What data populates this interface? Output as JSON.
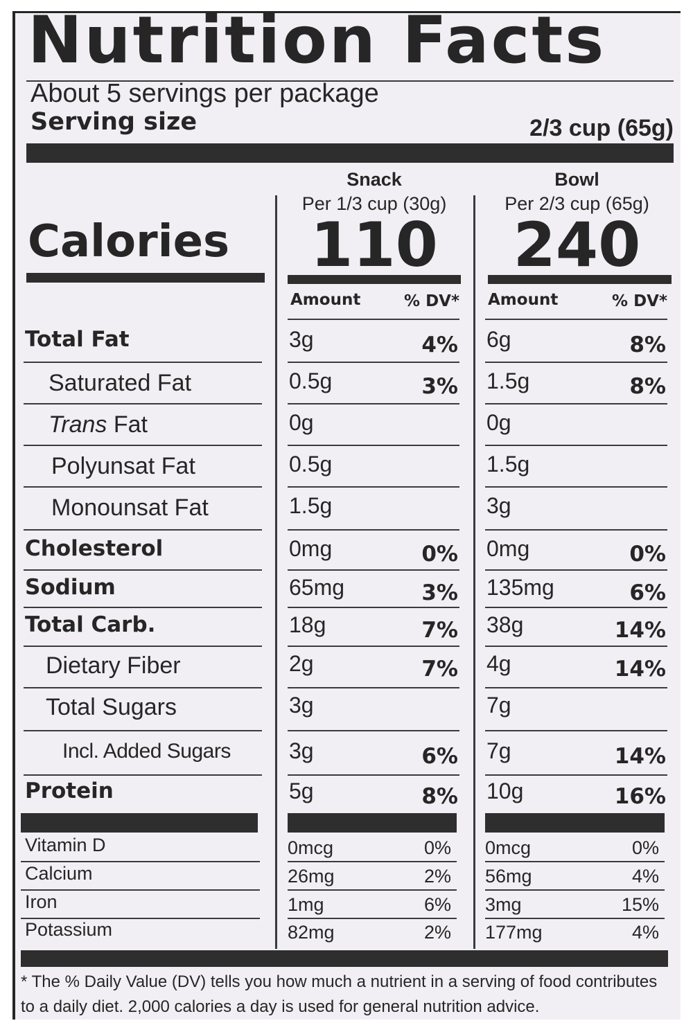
{
  "title": "Nutrition Facts",
  "servings": "About 5 servings per package",
  "serving_size_label": "Serving size",
  "serving_size": "2/3 cup (65g)",
  "calories_label": "Calories",
  "columns": [
    {
      "name": "Snack",
      "per": "Per 1/3 cup (30g)",
      "calories": 110,
      "amount_header": "Amount",
      "dv_header": "% DV*"
    },
    {
      "name": "Bowl",
      "per": "Per 2/3 cup (65g)",
      "calories": 240,
      "amount_header": "Amount",
      "dv_header": "% DV*"
    }
  ],
  "nutrients": [
    {
      "label": "Total Fat",
      "values": [
        [
          "3g",
          "4%"
        ],
        [
          "6g",
          "8%"
        ]
      ]
    },
    {
      "label": "Saturated Fat",
      "values": [
        [
          "0.5g",
          "3%"
        ],
        [
          "1.5g",
          "8%"
        ]
      ]
    },
    {
      "label": "Trans Fat",
      "values": [
        [
          "0g"
        ],
        [
          "0g"
        ]
      ]
    },
    {
      "label": "Polyunsat Fat",
      "values": [
        [
          "0.5g"
        ],
        [
          "1.5g"
        ]
      ]
    },
    {
      "label": "Monounsat Fat",
      "values": [
        [
          "1.5g"
        ],
        [
          "3g"
        ]
      ]
    },
    {
      "label": "Cholesterol",
      "values": [
        [
          "0mg",
          "0%"
        ],
        [
          "0mg",
          "0%"
        ]
      ]
    },
    {
      "label": "Sodium",
      "values": [
        [
          "65mg",
          "3%"
        ],
        [
          "135mg",
          "6%"
        ]
      ]
    },
    {
      "label": "Total Carb.",
      "values": [
        [
          "18g",
          "7%"
        ],
        [
          "38g",
          "14%"
        ]
      ]
    },
    {
      "label": "Dietary Fiber",
      "values": [
        [
          "2g",
          "7%"
        ],
        [
          "4g",
          "14%"
        ]
      ]
    },
    {
      "label": "Total Sugars",
      "values": [
        [
          "3g"
        ],
        [
          "7g"
        ]
      ]
    },
    {
      "label": "Incl. Added Sugars",
      "values": [
        [
          "3g",
          "6%"
        ],
        [
          "7g",
          "14%"
        ]
      ]
    },
    {
      "label": "Protein",
      "values": [
        [
          "5g",
          "8%"
        ],
        [
          "10g",
          "16%"
        ]
      ]
    }
  ],
  "vitamins": [
    {
      "label": "Vitamin D",
      "values": [
        [
          "0mcg",
          "0%"
        ],
        [
          "0mcg",
          "0%"
        ]
      ]
    },
    {
      "label": "Calcium",
      "values": [
        [
          "26mg",
          "2%"
        ],
        [
          "56mg",
          "4%"
        ]
      ]
    },
    {
      "label": "Iron",
      "values": [
        [
          "1mg",
          "6%"
        ],
        [
          "3mg",
          "15%"
        ]
      ]
    },
    {
      "label": "Potassium",
      "values": [
        [
          "82mg",
          "2%"
        ],
        [
          "177mg",
          "4%"
        ]
      ]
    }
  ],
  "footnote": "* The % Daily Value (DV) tells you how much a nutrient in a serving of food contributes to a daily diet. 2,000 calories a day is used for general nutrition advice."
}
